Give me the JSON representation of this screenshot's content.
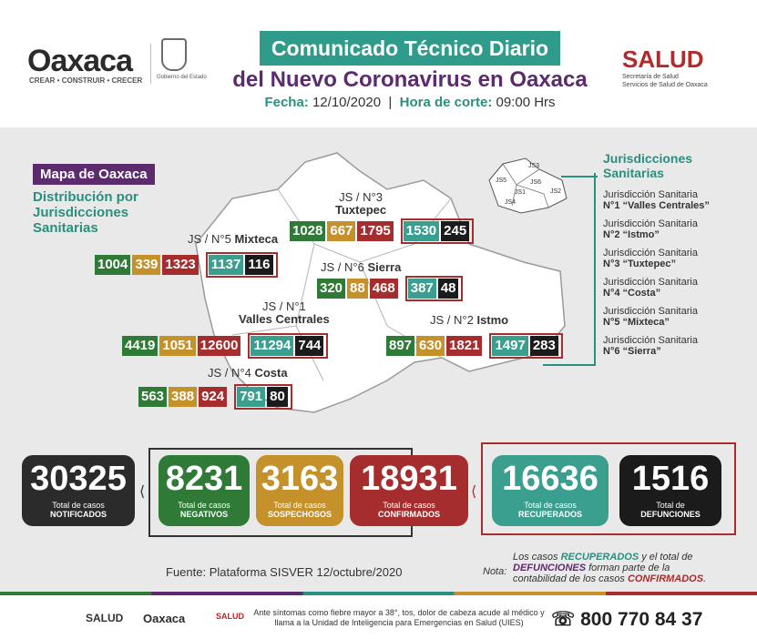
{
  "header": {
    "logo_text": "Oaxaca",
    "logo_tagline": "CREAR • CONSTRUIR • CRECER",
    "crest_caption": "Gobierno del Estado",
    "title_line1": "Comunicado Técnico Diario",
    "title_line2": "del Nuevo Coronavirus en Oaxaca",
    "fecha_label": "Fecha:",
    "fecha_value": "12/10/2020",
    "hora_label": "Hora de corte:",
    "hora_value": "09:00 Hrs",
    "salud_logo": "SALUD",
    "salud_sub1": "Secretaría de Salud",
    "salud_sub2": "Servicios de Salud de Oaxaca"
  },
  "map": {
    "label": "Mapa de Oaxaca",
    "subtitle_lines": [
      "Distribución por",
      "Jurisdicciones",
      "Sanitarias"
    ],
    "mini_labels": [
      "JS3",
      "JS5",
      "JS6",
      "JS1",
      "JS2",
      "JS4"
    ]
  },
  "jurisdictions": [
    {
      "title_prefix": "JS / N°3",
      "title_name": "Tuxtepec",
      "values": [
        "1028",
        "667",
        "1795"
      ],
      "recuperados": "1530",
      "defunciones": "245"
    },
    {
      "title_prefix": "JS / N°5",
      "title_name": "Mixteca",
      "values": [
        "1004",
        "339",
        "1323"
      ],
      "recuperados": "1137",
      "defunciones": "116"
    },
    {
      "title_prefix": "JS / N°6",
      "title_name": "Sierra",
      "values": [
        "320",
        "88",
        "468"
      ],
      "recuperados": "387",
      "defunciones": "48"
    },
    {
      "title_prefix": "JS / N°1",
      "title_name": "Valles Centrales",
      "values": [
        "4419",
        "1051",
        "12600"
      ],
      "recuperados": "11294",
      "defunciones": "744"
    },
    {
      "title_prefix": "JS / N°2",
      "title_name": "Istmo",
      "values": [
        "897",
        "630",
        "1821"
      ],
      "recuperados": "1497",
      "defunciones": "283"
    },
    {
      "title_prefix": "JS / N°4",
      "title_name": "Costa",
      "values": [
        "563",
        "388",
        "924"
      ],
      "recuperados": "791",
      "defunciones": "80"
    }
  ],
  "jurisdiction_list": {
    "title_lines": [
      "Jurisdicciones",
      "Sanitarias"
    ],
    "items": [
      {
        "line1": "Jurisdicción Sanitaria",
        "line2": "N°1 “Valles Centrales”"
      },
      {
        "line1": "Jurisdicción Sanitaria",
        "line2": "N°2 “Istmo”"
      },
      {
        "line1": "Jurisdicción Sanitaria",
        "line2": "N°3 “Tuxtepec”"
      },
      {
        "line1": "Jurisdicción Sanitaria",
        "line2": "N°4 “Costa”"
      },
      {
        "line1": "Jurisdicción Sanitaria",
        "line2": "N°5 “Mixteca”"
      },
      {
        "line1": "Jurisdicción Sanitaria",
        "line2": "N°6 “Sierra”"
      }
    ]
  },
  "totals": [
    {
      "value": "30325",
      "label1": "Total de casos",
      "label2": "NOTIFICADOS",
      "color": "#2b2b2b"
    },
    {
      "value": "8231",
      "label1": "Total de casos",
      "label2": "NEGATIVOS",
      "color": "#2e7a36"
    },
    {
      "value": "3163",
      "label1": "Total de casos",
      "label2": "SOSPECHOSOS",
      "color": "#c4912b"
    },
    {
      "value": "18931",
      "label1": "Total de casos",
      "label2": "CONFIRMADOS",
      "color": "#a62d2d"
    },
    {
      "value": "16636",
      "label1": "Total de casos",
      "label2": "RECUPERADOS",
      "color": "#3a9f8e"
    },
    {
      "value": "1516",
      "label1": "Total de",
      "label2": "DEFUNCIONES",
      "color": "#1b1b1b"
    }
  ],
  "footer": {
    "fuente": "Fuente: Plataforma SISVER 12/octubre/2020",
    "nota_label": "Nota:",
    "nota_parts": [
      "Los casos ",
      "RECUPERADOS",
      " y el total de ",
      "DEFUNCIONES",
      " forman parte de la contabilidad de los casos ",
      "CONFIRMADOS",
      "."
    ],
    "salud_small": "SALUD",
    "oaxaca_small": "Oaxaca",
    "salud_small2": "SALUD",
    "message": "Ante síntomas como fiebre mayor a 38°, tos, dolor de cabeza acude al médico y llama a la Unidad de Inteligencia para Emergencias en Salud (UIES)",
    "phone": "800 770 84 37"
  }
}
